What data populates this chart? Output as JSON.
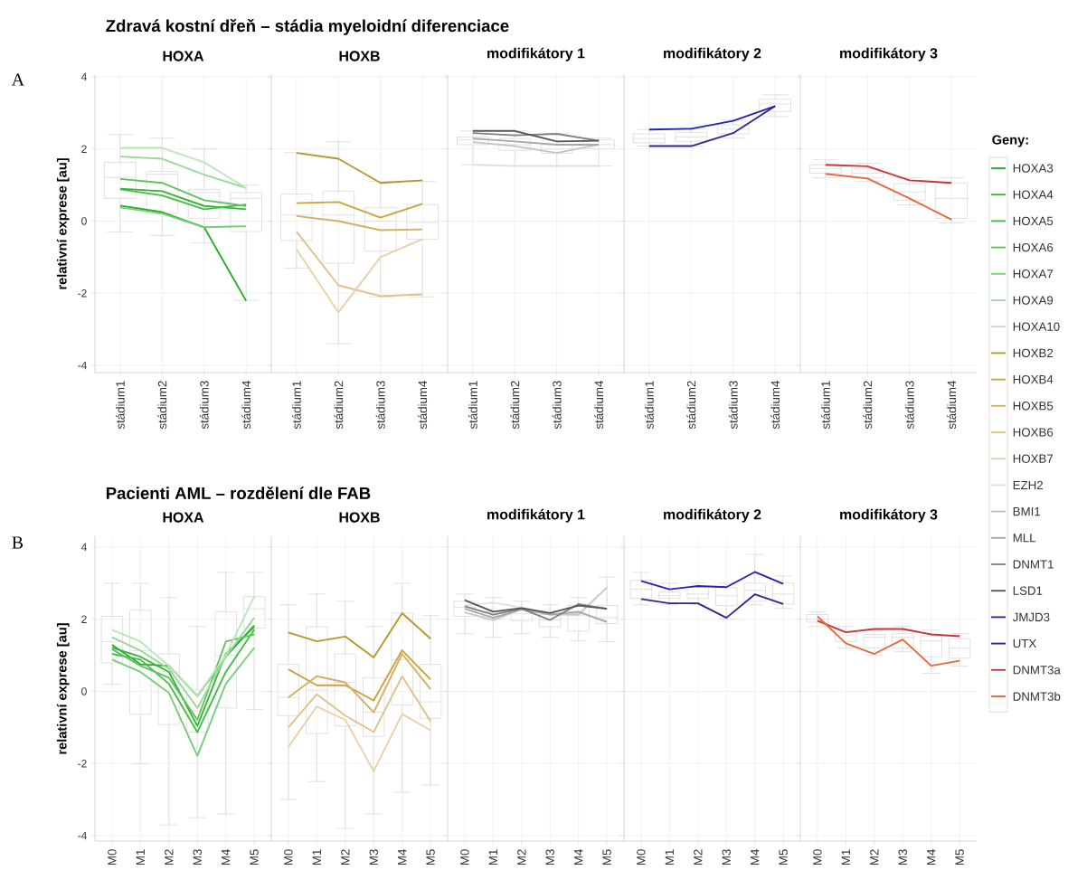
{
  "chart_data": [
    {
      "type": "line",
      "title": "Zdravá kostní dřeň – stádia myeloidní diferenciace",
      "subtitle": "HOXA",
      "ylabel": "relativní exprese [au]",
      "annotations": [
        "A"
      ],
      "categories": [
        "stádium1",
        "stádium2",
        "stádium3",
        "stádium4"
      ],
      "ylim": [
        -4.2,
        4.05
      ],
      "yticks": [
        -4,
        -2,
        0,
        2,
        4
      ],
      "grid": true,
      "series": [
        {
          "type": "box",
          "color": "#d9d9d9",
          "boxes": [
            {
              "low": -0.3,
              "q1": 0.63,
              "median": 1.21,
              "q3": 1.63,
              "high": 2.4
            },
            {
              "low": -0.4,
              "q1": 0.21,
              "median": 1.3,
              "q3": 1.38,
              "high": 2.3
            },
            {
              "low": -0.6,
              "q1": 0.08,
              "median": 0.79,
              "q3": 0.88,
              "high": 2.0
            },
            {
              "low": -2.2,
              "q1": -0.29,
              "median": 0.63,
              "q3": 0.79,
              "high": 1.0
            }
          ]
        },
        {
          "name": "HOXA3",
          "color": "#22b022",
          "values": [
            0.43,
            0.25,
            -0.17,
            -2.21
          ]
        },
        {
          "name": "HOXA4",
          "color": "#33b533",
          "values": [
            0.9,
            0.83,
            0.42,
            0.33
          ]
        },
        {
          "name": "HOXA5",
          "color": "#44bb44",
          "values": [
            0.88,
            0.71,
            0.33,
            0.46
          ]
        },
        {
          "name": "HOXA6",
          "color": "#5cc45c",
          "values": [
            1.17,
            1.06,
            0.58,
            0.42
          ]
        },
        {
          "name": "HOXA7",
          "color": "#77cc77",
          "values": [
            0.38,
            0.21,
            -0.17,
            -0.14
          ]
        },
        {
          "name": "HOXA9",
          "color": "#99d899",
          "values": [
            1.79,
            1.73,
            1.29,
            0.92
          ]
        },
        {
          "name": "HOXA10",
          "color": "#b8e6b8",
          "values": [
            2.03,
            2.03,
            1.63,
            0.92
          ]
        }
      ]
    },
    {
      "type": "line",
      "subtitle": "HOXB",
      "categories": [
        "stádium1",
        "stádium2",
        "stádium3",
        "stádium4"
      ],
      "ylim": [
        -4.2,
        4.05
      ],
      "yticks": [
        -4,
        -2,
        0,
        2,
        4
      ],
      "grid": true,
      "tick_labels": "x",
      "series": [
        {
          "type": "box",
          "color": "#d9d9d9",
          "boxes": [
            {
              "low": -1.3,
              "q1": -0.54,
              "median": 0.17,
              "q3": 0.75,
              "high": 1.9
            },
            {
              "low": -3.4,
              "q1": -1.17,
              "median": 0.17,
              "q3": 0.83,
              "high": 2.2
            },
            {
              "low": -2.1,
              "q1": -0.83,
              "median": 0,
              "q3": 0.38,
              "high": 1.1
            },
            {
              "low": -2.1,
              "q1": -0.5,
              "median": -0.04,
              "q3": 0.46,
              "high": 1.1
            }
          ]
        },
        {
          "name": "HOXB2",
          "color": "#b8962a",
          "values": [
            1.89,
            1.73,
            1.06,
            1.13
          ]
        },
        {
          "name": "HOXB4",
          "color": "#c9a33a",
          "values": [
            0.5,
            0.53,
            0.1,
            0.48
          ]
        },
        {
          "name": "HOXB5",
          "color": "#d4b060",
          "values": [
            0.14,
            0,
            -0.25,
            -0.23
          ]
        },
        {
          "name": "HOXB6",
          "color": "#dfc08a",
          "values": [
            -0.29,
            -1.78,
            -2.08,
            -2.03
          ]
        },
        {
          "name": "HOXB7",
          "color": "#e8d0a8",
          "values": [
            -0.78,
            -2.53,
            -1.0,
            -0.5
          ]
        }
      ]
    },
    {
      "type": "line",
      "subtitle": "modifikátory 1",
      "categories": [
        "stádium1",
        "stádium2",
        "stádium3",
        "stádium4"
      ],
      "ylim": [
        -4.2,
        4.05
      ],
      "yticks": [
        -4,
        -2,
        0,
        2,
        4
      ],
      "grid": true,
      "tick_labels": "x",
      "series": [
        {
          "type": "box",
          "color": "#d9d9d9",
          "boxes": [
            {
              "low": 1.56,
              "q1": 2.12,
              "median": 2.25,
              "q3": 2.33,
              "high": 2.5
            },
            {
              "low": 1.53,
              "q1": 1.96,
              "median": 2.12,
              "q3": 2.29,
              "high": 2.5
            },
            {
              "low": 1.53,
              "q1": 1.88,
              "median": 2.0,
              "q3": 2.12,
              "high": 2.44
            },
            {
              "low": 1.53,
              "q1": 2.0,
              "median": 2.12,
              "q3": 2.25,
              "high": 2.3
            }
          ]
        },
        {
          "name": "EZH2",
          "color": "#e0e0e0",
          "values": [
            1.56,
            1.53,
            1.53,
            1.53
          ]
        },
        {
          "name": "BMI1",
          "color": "#c4c4c4",
          "values": [
            2.19,
            2.08,
            1.89,
            2.12
          ]
        },
        {
          "name": "MLL",
          "color": "#a8a8a8",
          "values": [
            2.29,
            2.21,
            2.12,
            2.12
          ]
        },
        {
          "name": "DNMT1",
          "color": "#808080",
          "values": [
            2.44,
            2.38,
            2.42,
            2.23
          ]
        },
        {
          "name": "LSD1",
          "color": "#555555",
          "values": [
            2.5,
            2.5,
            2.21,
            2.23
          ]
        }
      ]
    },
    {
      "type": "line",
      "subtitle": "modifikátory 2",
      "categories": [
        "stádium1",
        "stádium2",
        "stádium3",
        "stádium4"
      ],
      "ylim": [
        -4.2,
        4.05
      ],
      "yticks": [
        -4,
        -2,
        0,
        2,
        4
      ],
      "grid": true,
      "tick_labels": "x",
      "series": [
        {
          "type": "box",
          "color": "#d9d9d9",
          "boxes": [
            {
              "low": 2.08,
              "q1": 2.17,
              "median": 2.29,
              "q3": 2.42,
              "high": 2.54
            },
            {
              "low": 2.08,
              "q1": 2.21,
              "median": 2.33,
              "q3": 2.46,
              "high": 2.56
            },
            {
              "low": 2.3,
              "q1": 2.42,
              "median": 2.55,
              "q3": 2.67,
              "high": 2.8
            },
            {
              "low": 2.9,
              "q1": 3.04,
              "median": 3.25,
              "q3": 3.38,
              "high": 3.5
            }
          ]
        },
        {
          "name": "JMJD3",
          "color": "#2a2a8a",
          "values": [
            2.08,
            2.08,
            2.44,
            3.19
          ]
        },
        {
          "name": "UTX",
          "color": "#2222bb",
          "values": [
            2.54,
            2.56,
            2.78,
            3.19
          ]
        }
      ]
    },
    {
      "type": "line",
      "subtitle": "modifikátory 3",
      "legend_title": "Geny:",
      "legend": "right",
      "categories": [
        "stádium1",
        "stádium2",
        "stádium3",
        "stádium4"
      ],
      "ylim": [
        -4.2,
        4.05
      ],
      "yticks": [
        -4,
        -2,
        0,
        2,
        4
      ],
      "grid": true,
      "tick_labels": "x",
      "series": [
        {
          "type": "box",
          "color": "#d9d9d9",
          "boxes": [
            {
              "low": 1.2,
              "q1": 1.33,
              "median": 1.46,
              "q3": 1.56,
              "high": 1.7
            },
            {
              "low": 1.1,
              "q1": 1.21,
              "median": 1.33,
              "q3": 1.46,
              "high": 1.6
            },
            {
              "low": 0.45,
              "q1": 0.58,
              "median": 0.81,
              "q3": 1.04,
              "high": 1.2
            },
            {
              "low": -0.05,
              "q1": 0.08,
              "median": 0.63,
              "q3": 1.06,
              "high": 1.2
            }
          ]
        },
        {
          "name": "DNMT3a",
          "color": "#cc3333",
          "values": [
            1.56,
            1.52,
            1.13,
            1.06
          ]
        },
        {
          "name": "DNMT3b",
          "color": "#e8673a",
          "values": [
            1.31,
            1.18,
            0.63,
            0.04
          ]
        }
      ]
    },
    {
      "type": "line",
      "title": "Pacienti AML – rozdělení dle FAB",
      "subtitle": "HOXA",
      "ylabel": "relativní exprese [au]",
      "annotations": [
        "B"
      ],
      "categories": [
        "M0",
        "M1",
        "M2",
        "M3",
        "M4",
        "M5"
      ],
      "ylim": [
        -4.15,
        4.3
      ],
      "yticks": [
        -4,
        -2,
        0,
        2,
        4
      ],
      "grid": true,
      "series": [
        {
          "type": "box",
          "color": "#d9d9d9",
          "boxes": [
            {
              "low": 0.2,
              "q1": 0.79,
              "median": 1.38,
              "q3": 2.08,
              "high": 3.0
            },
            {
              "low": -2.0,
              "q1": -0.63,
              "median": 1.13,
              "q3": 2.25,
              "high": 3.0
            },
            {
              "low": -3.7,
              "q1": -0.92,
              "median": 0.54,
              "q3": 1.04,
              "high": 2.6
            },
            {
              "low": -3.5,
              "q1": -1.13,
              "median": -0.54,
              "q3": 0.04,
              "high": 1.8
            },
            {
              "low": -3.4,
              "q1": -0.46,
              "median": 1.0,
              "q3": 2.21,
              "high": 3.3
            },
            {
              "low": -0.5,
              "q1": 1.75,
              "median": 2.29,
              "q3": 2.63,
              "high": 3.3
            }
          ]
        },
        {
          "color": "#22b022",
          "values": [
            1.29,
            0.75,
            0.71,
            -0.13,
            0.96,
            1.83
          ]
        },
        {
          "color": "#33b533",
          "values": [
            1.21,
            0.96,
            0.54,
            -0.96,
            1.04,
            1.79
          ]
        },
        {
          "color": "#44bb44",
          "values": [
            1.04,
            0.88,
            0.21,
            -1.13,
            0.54,
            1.71
          ]
        },
        {
          "color": "#5cc45c",
          "values": [
            1.17,
            0.71,
            0.38,
            -0.79,
            1.38,
            1.58
          ]
        },
        {
          "color": "#77cc77",
          "values": [
            0.88,
            0.54,
            -0.04,
            -1.79,
            0.21,
            1.21
          ]
        },
        {
          "color": "#99d899",
          "values": [
            1.5,
            1.13,
            0.63,
            -0.46,
            0.96,
            2.04
          ]
        },
        {
          "color": "#b8e6b8",
          "values": [
            1.71,
            1.38,
            0.71,
            -0.13,
            1.0,
            2.63
          ]
        }
      ]
    },
    {
      "type": "line",
      "subtitle": "HOXB",
      "categories": [
        "M0",
        "M1",
        "M2",
        "M3",
        "M4",
        "M5"
      ],
      "ylim": [
        -4.15,
        4.3
      ],
      "yticks": [
        -4,
        -2,
        0,
        2,
        4
      ],
      "grid": true,
      "tick_labels": "x",
      "series": [
        {
          "type": "box",
          "color": "#d9d9d9",
          "boxes": [
            {
              "low": -3.0,
              "q1": -0.67,
              "median": -0.17,
              "q3": 0.75,
              "high": 2.4
            },
            {
              "low": -2.5,
              "q1": -1.17,
              "median": 0.04,
              "q3": 1.79,
              "high": 2.7
            },
            {
              "low": -3.8,
              "q1": -0.96,
              "median": 0.25,
              "q3": 1.04,
              "high": 2.5
            },
            {
              "low": -3.4,
              "q1": -1.25,
              "median": -0.58,
              "q3": 0.38,
              "high": 1.8
            },
            {
              "low": -2.8,
              "q1": -0.38,
              "median": 0.88,
              "q3": 2.17,
              "high": 3.0
            },
            {
              "low": -2.6,
              "q1": -0.75,
              "median": -0.29,
              "q3": 0.75,
              "high": 2.1
            }
          ]
        },
        {
          "color": "#b8962a",
          "values": [
            1.63,
            1.39,
            1.52,
            0.94,
            2.17,
            1.46
          ]
        },
        {
          "color": "#c9a33a",
          "values": [
            0.61,
            0.17,
            0.17,
            -0.25,
            1.14,
            0.33
          ]
        },
        {
          "color": "#d4b060",
          "values": [
            -0.17,
            0.42,
            0.25,
            -0.58,
            1.04,
            0.06
          ]
        },
        {
          "color": "#dfc08a",
          "values": [
            -1.0,
            -0.08,
            -0.67,
            -1.13,
            0.42,
            -0.83
          ]
        },
        {
          "color": "#e8d0a8",
          "values": [
            -1.54,
            -0.42,
            -0.79,
            -2.21,
            -0.63,
            -1.08
          ]
        }
      ]
    },
    {
      "type": "line",
      "subtitle": "modifikátory 1",
      "categories": [
        "M0",
        "M1",
        "M2",
        "M3",
        "M4",
        "M5"
      ],
      "ylim": [
        -4.15,
        4.3
      ],
      "yticks": [
        -4,
        -2,
        0,
        2,
        4
      ],
      "grid": true,
      "tick_labels": "x",
      "series": [
        {
          "type": "box",
          "color": "#d9d9d9",
          "boxes": [
            {
              "low": 1.6,
              "q1": 2.08,
              "median": 2.33,
              "q3": 2.5,
              "high": 2.7
            },
            {
              "low": 1.5,
              "q1": 2.0,
              "median": 2.1,
              "q3": 2.21,
              "high": 2.6
            },
            {
              "low": 1.6,
              "q1": 1.96,
              "median": 2.15,
              "q3": 2.29,
              "high": 2.5
            },
            {
              "low": 1.5,
              "q1": 1.79,
              "median": 1.98,
              "q3": 2.13,
              "high": 2.4
            },
            {
              "low": 1.4,
              "q1": 1.67,
              "median": 2.1,
              "q3": 2.38,
              "high": 2.6
            },
            {
              "low": 1.38,
              "q1": 1.88,
              "median": 2.05,
              "q3": 2.38,
              "high": 3.17
            }
          ]
        },
        {
          "color": "#e0e0e0",
          "values": [
            2.38,
            2.46,
            2.33,
            2.13,
            2.17,
            1.96
          ]
        },
        {
          "color": "#c4c4c4",
          "values": [
            2.19,
            1.98,
            2.28,
            2.13,
            2.13,
            2.88
          ]
        },
        {
          "color": "#a8a8a8",
          "values": [
            2.29,
            2.04,
            2.28,
            2.13,
            2.21,
            1.92
          ]
        },
        {
          "color": "#808080",
          "values": [
            2.36,
            2.13,
            2.29,
            1.98,
            2.42,
            2.29
          ]
        },
        {
          "color": "#555555",
          "values": [
            2.53,
            2.21,
            2.31,
            2.17,
            2.38,
            2.29
          ]
        }
      ]
    },
    {
      "type": "line",
      "subtitle": "modifikátory 2",
      "categories": [
        "M0",
        "M1",
        "M2",
        "M3",
        "M4",
        "M5"
      ],
      "ylim": [
        -4.15,
        4.3
      ],
      "yticks": [
        -4,
        -2,
        0,
        2,
        4
      ],
      "grid": true,
      "tick_labels": "x",
      "series": [
        {
          "type": "box",
          "color": "#d9d9d9",
          "boxes": [
            {
              "low": 2.4,
              "q1": 2.58,
              "median": 2.83,
              "q3": 3.08,
              "high": 3.3
            },
            {
              "low": 2.4,
              "q1": 2.58,
              "median": 2.65,
              "q3": 2.75,
              "high": 3.0
            },
            {
              "low": 2.4,
              "q1": 2.58,
              "median": 2.7,
              "q3": 2.88,
              "high": 3.0
            },
            {
              "low": 2.0,
              "q1": 2.38,
              "median": 2.65,
              "q3": 2.88,
              "high": 3.0
            },
            {
              "low": 2.4,
              "q1": 2.5,
              "median": 2.8,
              "q3": 3.0,
              "high": 3.8
            },
            {
              "low": 2.3,
              "q1": 2.42,
              "median": 2.7,
              "q3": 3.0,
              "high": 3.2
            }
          ]
        },
        {
          "color": "#2a2a8a",
          "values": [
            2.56,
            2.44,
            2.44,
            2.04,
            2.69,
            2.42
          ]
        },
        {
          "color": "#2222bb",
          "values": [
            3.06,
            2.83,
            2.92,
            2.89,
            3.31,
            2.98
          ]
        }
      ]
    },
    {
      "type": "line",
      "subtitle": "modifikátory 3",
      "categories": [
        "M0",
        "M1",
        "M2",
        "M3",
        "M4",
        "M5"
      ],
      "ylim": [
        -4.15,
        4.3
      ],
      "yticks": [
        -4,
        -2,
        0,
        2,
        4
      ],
      "grid": true,
      "tick_labels": "x",
      "series": [
        {
          "type": "box",
          "color": "#d9d9d9",
          "boxes": [
            {
              "low": 1.8,
              "q1": 1.92,
              "median": 2.0,
              "q3": 2.13,
              "high": 2.2
            },
            {
              "low": 1.2,
              "q1": 1.38,
              "median": 1.55,
              "q3": 1.67,
              "high": 1.8
            },
            {
              "low": 1.0,
              "q1": 1.21,
              "median": 1.5,
              "q3": 1.58,
              "high": 1.7
            },
            {
              "low": 1.1,
              "q1": 1.2,
              "median": 1.5,
              "q3": 1.6,
              "high": 1.8
            },
            {
              "low": 0.5,
              "q1": 0.96,
              "median": 1.4,
              "q3": 1.54,
              "high": 1.7
            },
            {
              "low": 0.7,
              "q1": 0.92,
              "median": 1.2,
              "q3": 1.46,
              "high": 1.6
            }
          ]
        },
        {
          "color": "#cc3333",
          "values": [
            1.96,
            1.64,
            1.73,
            1.73,
            1.58,
            1.53
          ]
        },
        {
          "color": "#e8673a",
          "values": [
            2.08,
            1.33,
            1.04,
            1.44,
            0.71,
            0.85
          ]
        }
      ]
    }
  ]
}
